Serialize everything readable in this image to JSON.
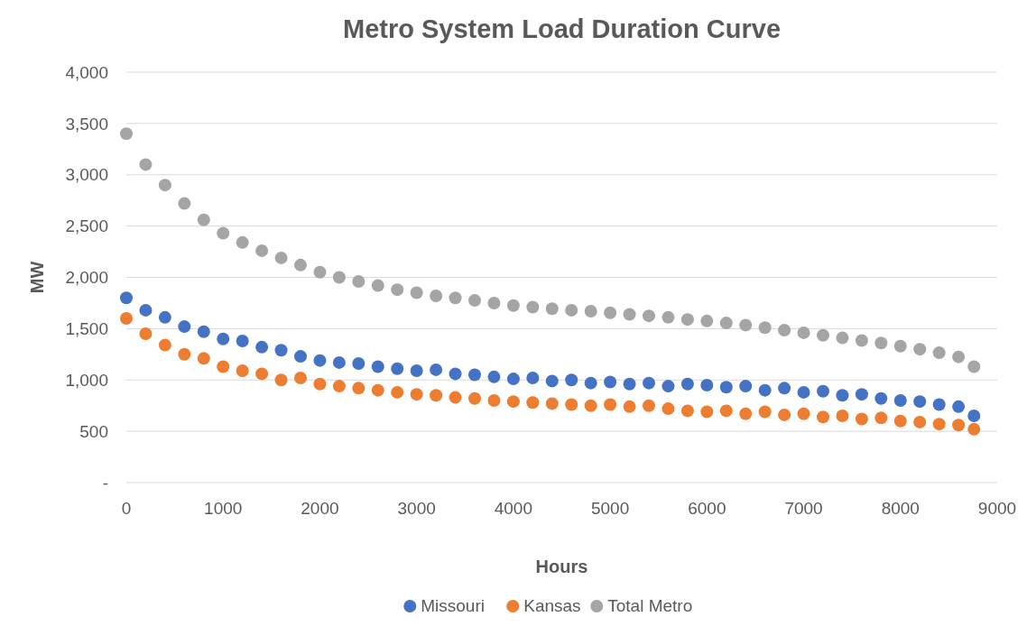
{
  "chart_data": {
    "type": "scatter",
    "title": "Metro System Load Duration Curve",
    "xlabel": "Hours",
    "ylabel": "MW",
    "x": [
      0,
      200,
      400,
      600,
      800,
      1000,
      1200,
      1400,
      1600,
      1800,
      2000,
      2200,
      2400,
      2600,
      2800,
      3000,
      3200,
      3400,
      3600,
      3800,
      4000,
      4200,
      4400,
      4600,
      4800,
      5000,
      5200,
      5400,
      5600,
      5800,
      6000,
      6200,
      6400,
      6600,
      6800,
      7000,
      7200,
      7400,
      7600,
      7800,
      8000,
      8200,
      8400,
      8600,
      8760
    ],
    "series": [
      {
        "name": "Missouri",
        "color": "#4472c4",
        "values": [
          1800,
          1680,
          1610,
          1520,
          1470,
          1400,
          1380,
          1320,
          1290,
          1230,
          1190,
          1170,
          1160,
          1130,
          1110,
          1090,
          1100,
          1060,
          1050,
          1030,
          1010,
          1020,
          990,
          1000,
          970,
          980,
          960,
          970,
          940,
          960,
          950,
          930,
          940,
          900,
          920,
          880,
          890,
          850,
          860,
          820,
          800,
          790,
          760,
          740,
          650
        ]
      },
      {
        "name": "Kansas",
        "color": "#ed7d31",
        "values": [
          1600,
          1450,
          1340,
          1250,
          1210,
          1130,
          1090,
          1060,
          1000,
          1020,
          960,
          940,
          920,
          900,
          880,
          860,
          850,
          830,
          820,
          800,
          790,
          780,
          770,
          760,
          750,
          760,
          740,
          750,
          720,
          700,
          690,
          700,
          670,
          690,
          660,
          670,
          640,
          650,
          620,
          630,
          600,
          590,
          570,
          560,
          520
        ]
      },
      {
        "name": "Total Metro",
        "color": "#a5a5a5",
        "values": [
          3400,
          3100,
          2900,
          2720,
          2560,
          2430,
          2340,
          2260,
          2190,
          2120,
          2050,
          2000,
          1960,
          1920,
          1880,
          1850,
          1820,
          1800,
          1775,
          1750,
          1725,
          1710,
          1695,
          1680,
          1670,
          1655,
          1640,
          1625,
          1610,
          1590,
          1575,
          1555,
          1535,
          1510,
          1485,
          1460,
          1435,
          1410,
          1385,
          1360,
          1330,
          1300,
          1265,
          1225,
          1130
        ]
      }
    ],
    "xlim": [
      0,
      9000
    ],
    "xticks": [
      0,
      1000,
      2000,
      3000,
      4000,
      5000,
      6000,
      7000,
      8000,
      9000
    ],
    "ylim": [
      0,
      4000
    ],
    "yticks": [
      {
        "value": 0,
        "label": "-"
      },
      {
        "value": 500,
        "label": "500"
      },
      {
        "value": 1000,
        "label": "1,000"
      },
      {
        "value": 1500,
        "label": "1,500"
      },
      {
        "value": 2000,
        "label": "2,000"
      },
      {
        "value": 2500,
        "label": "2,500"
      },
      {
        "value": 3000,
        "label": "3,000"
      },
      {
        "value": 3500,
        "label": "3,500"
      },
      {
        "value": 4000,
        "label": "4,000"
      }
    ],
    "grid": "y",
    "legend": "bottom",
    "marker": "circle"
  }
}
